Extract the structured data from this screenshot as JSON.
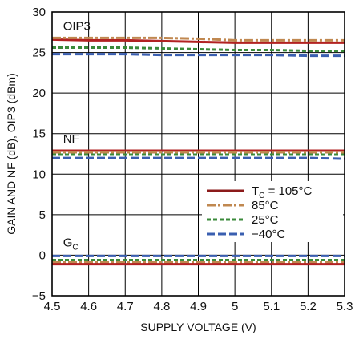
{
  "chart_data": {
    "type": "line",
    "title": "",
    "xlabel": "SUPPLY VOLTAGE (V)",
    "ylabel": "GAIN AND NF (dB), OIP3 (dBm)",
    "xlim": [
      4.5,
      5.3
    ],
    "ylim": [
      -5,
      30
    ],
    "grid": true,
    "x_ticks": [
      "4.5",
      "4.6",
      "4.7",
      "4.8",
      "4.9",
      "5",
      "5.1",
      "5.2",
      "5.3"
    ],
    "y_ticks": [
      "−5",
      "0",
      "5",
      "10",
      "15",
      "20",
      "25",
      "30"
    ],
    "legend_position": "right-middle",
    "annotations": [
      {
        "text": "OIP3",
        "x": 4.53,
        "y": 27.8
      },
      {
        "text": "NF",
        "x": 4.53,
        "y": 13.9
      },
      {
        "text": "G",
        "sub": "C",
        "x": 4.53,
        "y": 1.1
      }
    ],
    "legend": [
      {
        "label": "T",
        "sub": "C",
        "rest": " = 105°C",
        "color": "#8b1a1a",
        "dash": "solid"
      },
      {
        "label": "85°C",
        "sub": "",
        "rest": "",
        "color": "#c08850",
        "dash": "dashdot"
      },
      {
        "label": "25°C",
        "sub": "",
        "rest": "",
        "color": "#3a8a3a",
        "dash": "dotted"
      },
      {
        "label": "−40°C",
        "sub": "",
        "rest": "",
        "color": "#3a5fb0",
        "dash": "dashed"
      }
    ],
    "series": [
      {
        "temp": "105C",
        "group": "OIP3",
        "color": "#b22222",
        "dash": "solid",
        "x": [
          4.5,
          4.6,
          4.7,
          4.8,
          4.9,
          5.0,
          5.1,
          5.2,
          5.3
        ],
        "values": [
          26.6,
          26.5,
          26.5,
          26.4,
          26.3,
          26.2,
          26.2,
          26.2,
          26.2
        ]
      },
      {
        "temp": "85C",
        "group": "OIP3",
        "color": "#c08850",
        "dash": "dashdot",
        "x": [
          4.5,
          4.6,
          4.7,
          4.8,
          4.9,
          5.0,
          5.1,
          5.2,
          5.3
        ],
        "values": [
          26.8,
          26.8,
          26.8,
          26.8,
          26.7,
          26.5,
          26.5,
          26.5,
          26.5
        ]
      },
      {
        "temp": "25C",
        "group": "OIP3",
        "color": "#3a8a3a",
        "dash": "dotted",
        "x": [
          4.5,
          4.6,
          4.7,
          4.8,
          4.9,
          5.0,
          5.1,
          5.2,
          5.3
        ],
        "values": [
          25.6,
          25.6,
          25.6,
          25.5,
          25.4,
          25.3,
          25.3,
          25.2,
          25.2
        ]
      },
      {
        "temp": "-40C",
        "group": "OIP3",
        "color": "#3a5fb0",
        "dash": "dashed",
        "x": [
          4.5,
          4.6,
          4.7,
          4.8,
          4.9,
          5.0,
          5.1,
          5.2,
          5.3
        ],
        "values": [
          24.8,
          24.8,
          24.8,
          24.7,
          24.7,
          24.7,
          24.7,
          24.6,
          24.6
        ]
      },
      {
        "temp": "105C",
        "group": "NF",
        "color": "#b22222",
        "dash": "solid",
        "x": [
          4.5,
          4.6,
          4.7,
          4.8,
          4.9,
          5.0,
          5.1,
          5.2,
          5.3
        ],
        "values": [
          12.9,
          12.9,
          12.9,
          12.9,
          12.9,
          12.9,
          12.9,
          12.9,
          12.9
        ]
      },
      {
        "temp": "85C",
        "group": "NF",
        "color": "#c08850",
        "dash": "dashdot",
        "x": [
          4.5,
          4.6,
          4.7,
          4.8,
          4.9,
          5.0,
          5.1,
          5.2,
          5.3
        ],
        "values": [
          12.7,
          12.7,
          12.7,
          12.7,
          12.7,
          12.7,
          12.7,
          12.7,
          12.7
        ]
      },
      {
        "temp": "25C",
        "group": "NF",
        "color": "#3a8a3a",
        "dash": "dotted",
        "x": [
          4.5,
          4.6,
          4.7,
          4.8,
          4.9,
          5.0,
          5.1,
          5.2,
          5.3
        ],
        "values": [
          12.4,
          12.4,
          12.4,
          12.4,
          12.4,
          12.4,
          12.4,
          12.4,
          12.4
        ]
      },
      {
        "temp": "-40C",
        "group": "NF",
        "color": "#3a5fb0",
        "dash": "dashed",
        "x": [
          4.5,
          4.6,
          4.7,
          4.8,
          4.9,
          5.0,
          5.1,
          5.2,
          5.3
        ],
        "values": [
          12.0,
          12.0,
          12.0,
          12.0,
          12.0,
          12.0,
          12.0,
          12.0,
          11.9
        ]
      },
      {
        "temp": "-40C",
        "group": "GC",
        "color": "#3a5fb0",
        "dash": "dashed",
        "x": [
          4.5,
          4.6,
          4.7,
          4.8,
          4.9,
          5.0,
          5.1,
          5.2,
          5.3
        ],
        "values": [
          -0.1,
          -0.1,
          -0.1,
          -0.1,
          -0.1,
          -0.1,
          -0.1,
          -0.1,
          -0.1
        ]
      },
      {
        "temp": "25C",
        "group": "GC",
        "color": "#3a8a3a",
        "dash": "dotted",
        "x": [
          4.5,
          4.6,
          4.7,
          4.8,
          4.9,
          5.0,
          5.1,
          5.2,
          5.3
        ],
        "values": [
          -0.6,
          -0.6,
          -0.6,
          -0.6,
          -0.6,
          -0.6,
          -0.6,
          -0.6,
          -0.6
        ]
      },
      {
        "temp": "85C",
        "group": "GC",
        "color": "#c08850",
        "dash": "dashdot",
        "x": [
          4.5,
          4.6,
          4.7,
          4.8,
          4.9,
          5.0,
          5.1,
          5.2,
          5.3
        ],
        "values": [
          -0.9,
          -0.9,
          -0.9,
          -0.9,
          -0.9,
          -0.9,
          -0.9,
          -0.9,
          -0.9
        ]
      },
      {
        "temp": "105C",
        "group": "GC",
        "color": "#b22222",
        "dash": "solid",
        "x": [
          4.5,
          4.6,
          4.7,
          4.8,
          4.9,
          5.0,
          5.1,
          5.2,
          5.3
        ],
        "values": [
          -1.1,
          -1.1,
          -1.1,
          -1.1,
          -1.1,
          -1.1,
          -1.1,
          -1.1,
          -1.1
        ]
      }
    ]
  }
}
